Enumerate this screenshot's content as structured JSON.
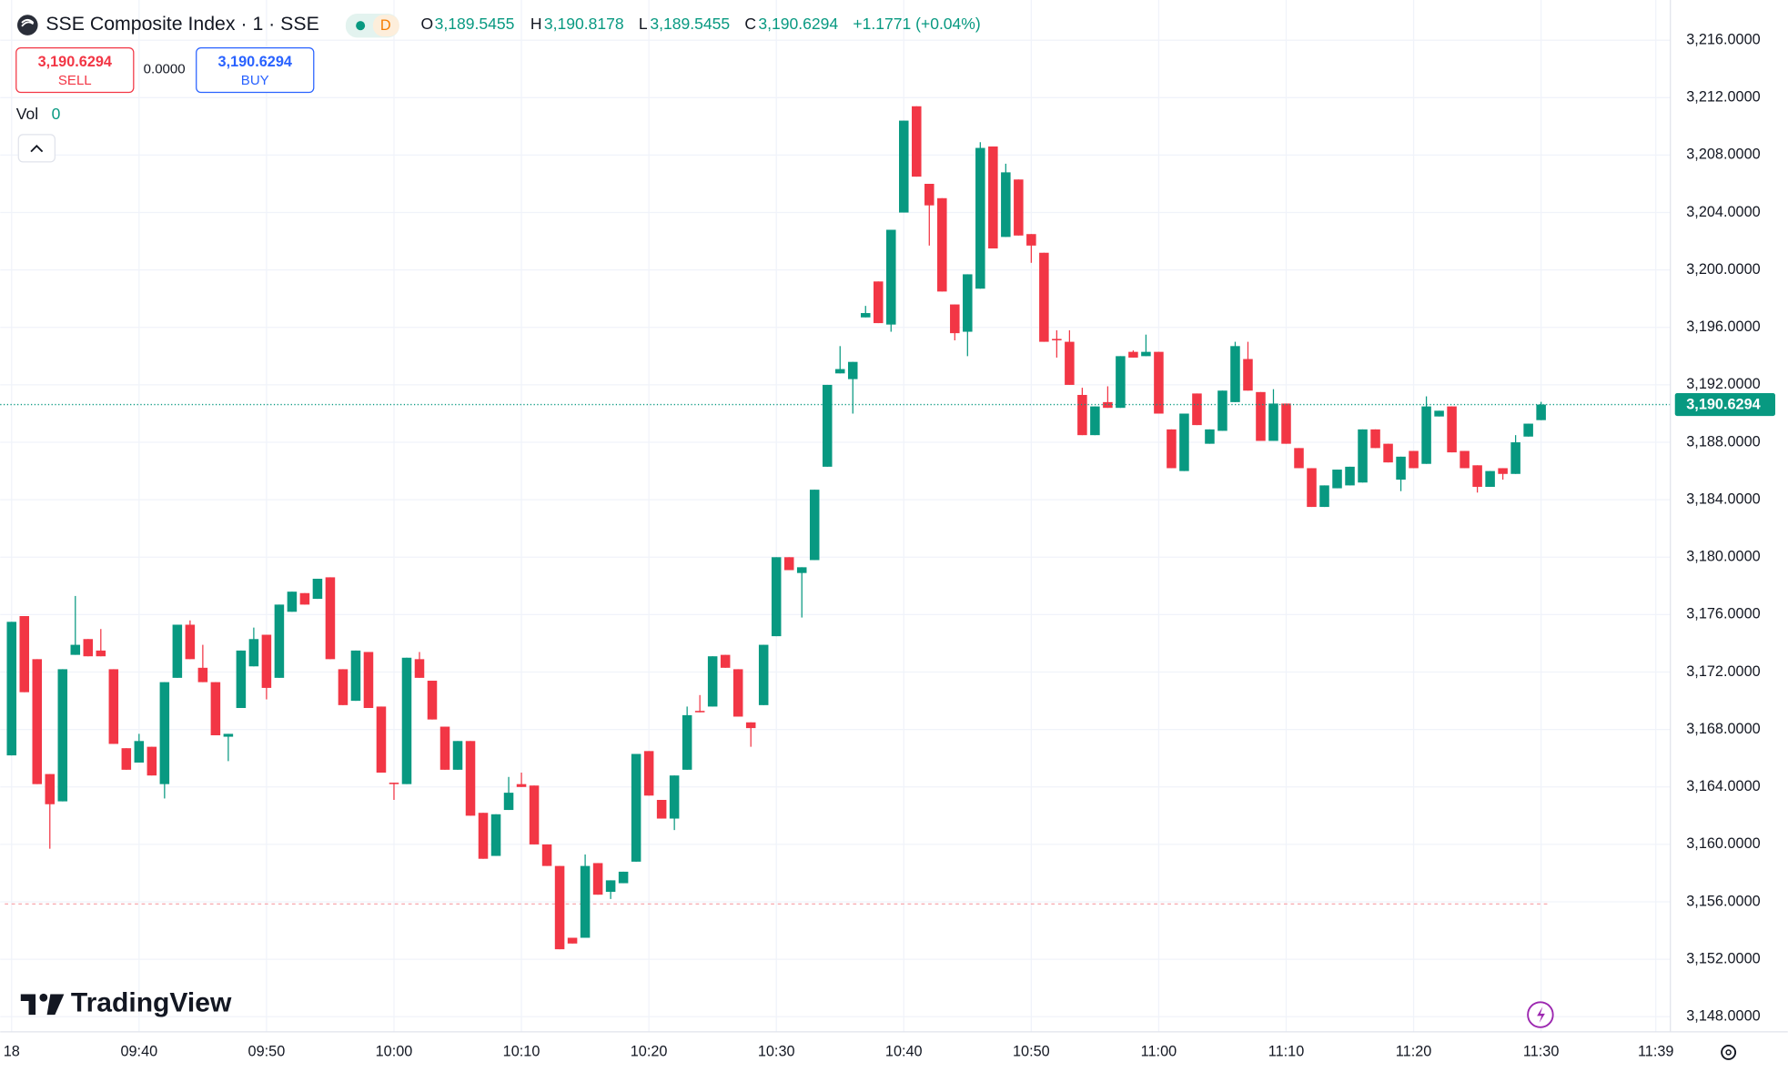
{
  "header": {
    "title": "SSE Composite Index · 1 · SSE",
    "badge": "D",
    "ohlc": [
      {
        "label": "O",
        "value": "3,189.5455"
      },
      {
        "label": "H",
        "value": "3,190.8178"
      },
      {
        "label": "L",
        "value": "3,189.5455"
      },
      {
        "label": "C",
        "value": "3,190.6294"
      }
    ],
    "change": "+1.1771 (+0.04%)"
  },
  "trade": {
    "sell_price": "3,190.6294",
    "sell_label": "SELL",
    "spread": "0.0000",
    "buy_price": "3,190.6294",
    "buy_label": "BUY"
  },
  "branding": "TradingView",
  "chart_data": {
    "type": "candlestick",
    "volume_label": "Vol",
    "volume_value": 0,
    "categories": [
      "18",
      null,
      null,
      null,
      null,
      null,
      null,
      null,
      null,
      null,
      "09:40",
      null,
      null,
      null,
      null,
      null,
      null,
      null,
      null,
      null,
      "09:50",
      null,
      null,
      null,
      null,
      null,
      null,
      null,
      null,
      null,
      "10:00",
      null,
      null,
      null,
      null,
      null,
      null,
      null,
      null,
      null,
      "10:10",
      null,
      null,
      null,
      null,
      null,
      null,
      null,
      null,
      null,
      "10:20",
      null,
      null,
      null,
      null,
      null,
      null,
      null,
      null,
      null,
      "10:30",
      null,
      null,
      null,
      null,
      null,
      null,
      null,
      null,
      null,
      "10:40",
      null,
      null,
      null,
      null,
      null,
      null,
      null,
      null,
      null,
      "10:50",
      null,
      null,
      null,
      null,
      null,
      null,
      null,
      null,
      null,
      "11:00",
      null,
      null,
      null,
      null,
      null,
      null,
      null,
      null,
      null,
      "11:10",
      null,
      null,
      null,
      null,
      null,
      null,
      null,
      null,
      null,
      "11:20",
      null,
      null,
      null,
      null,
      null,
      null,
      null,
      null,
      null,
      "11:30",
      null,
      null,
      null,
      null,
      null,
      null,
      null,
      null,
      "11:39"
    ],
    "series": [
      {
        "up_color": "#089981",
        "down_color": "#f23645",
        "open": [
          3166.2,
          3175.9,
          3172.9,
          3164.9,
          3163.0,
          3173.2,
          3174.3,
          3173.5,
          3172.2,
          3166.7,
          3165.7,
          3166.8,
          3164.2,
          3171.6,
          3175.3,
          3172.3,
          3171.3,
          3167.5,
          3169.5,
          3172.4,
          3174.6,
          3171.6,
          3176.2,
          3177.5,
          3177.1,
          3178.6,
          3172.2,
          3170.0,
          3173.4,
          3169.6,
          3164.3,
          3164.2,
          3172.9,
          3171.4,
          3168.2,
          3165.2,
          3167.2,
          3162.2,
          3159.2,
          3162.4,
          3164.2,
          3164.1,
          3160.0,
          3158.5,
          3153.5,
          3153.5,
          3158.7,
          3156.7,
          3157.3,
          3158.8,
          3166.5,
          3163.1,
          3161.8,
          3165.2,
          3169.3,
          3169.6,
          3173.2,
          3172.2,
          3168.5,
          3169.7,
          3174.5,
          3180.0,
          3178.9,
          3179.8,
          3186.3,
          3192.8,
          3192.4,
          3196.7,
          3199.2,
          3196.2,
          3204.0,
          3211.4,
          3206.0,
          3205.0,
          3197.6,
          3195.7,
          3198.7,
          3208.6,
          3202.3,
          3206.3,
          3202.5,
          3201.2,
          3195.2,
          3195.0,
          3191.3,
          3188.5,
          3190.8,
          3190.4,
          3194.3,
          3194.0,
          3194.3,
          3188.9,
          3186.0,
          3191.4,
          3187.9,
          3188.8,
          3190.8,
          3193.8,
          3191.5,
          3188.1,
          3190.7,
          3187.6,
          3186.2,
          3183.5,
          3184.8,
          3185.0,
          3185.2,
          3188.9,
          3187.9,
          3185.4,
          3187.4,
          3186.5,
          3189.8,
          3190.5,
          3187.4,
          3186.4,
          3184.9,
          3186.2,
          3185.8,
          3188.4,
          3189.5455,
          null,
          null,
          null,
          null,
          null,
          null,
          null,
          null,
          null
        ],
        "high": [
          3175.5,
          3175.9,
          3172.9,
          3164.9,
          3172.2,
          3177.3,
          3174.3,
          3175.0,
          3172.2,
          3166.7,
          3167.7,
          3166.8,
          3171.3,
          3175.3,
          3175.6,
          3173.9,
          3171.3,
          3167.7,
          3173.5,
          3175.1,
          3174.6,
          3176.7,
          3177.6,
          3177.5,
          3178.5,
          3178.6,
          3172.2,
          3173.5,
          3173.4,
          3169.6,
          3164.3,
          3173.0,
          3173.4,
          3171.4,
          3168.2,
          3167.2,
          3167.2,
          3162.2,
          3162.1,
          3164.7,
          3165.0,
          3164.1,
          3160.0,
          3158.5,
          3153.5,
          3159.3,
          3158.7,
          3157.5,
          3158.1,
          3166.3,
          3166.5,
          3163.1,
          3164.8,
          3169.6,
          3170.4,
          3173.1,
          3173.2,
          3172.2,
          3168.5,
          3173.9,
          3180.0,
          3180.0,
          3179.3,
          3184.7,
          3192.0,
          3194.7,
          3193.6,
          3197.5,
          3199.2,
          3202.8,
          3210.4,
          3211.4,
          3206.0,
          3205.0,
          3197.6,
          3199.7,
          3208.9,
          3208.6,
          3207.4,
          3206.3,
          3202.5,
          3201.2,
          3195.8,
          3195.8,
          3191.8,
          3190.5,
          3191.9,
          3194.0,
          3194.4,
          3195.5,
          3194.3,
          3188.9,
          3190.0,
          3191.4,
          3188.9,
          3191.6,
          3195.0,
          3195.0,
          3191.5,
          3191.7,
          3190.7,
          3187.6,
          3186.2,
          3185.0,
          3186.1,
          3186.3,
          3188.9,
          3188.9,
          3187.9,
          3187.0,
          3187.4,
          3191.2,
          3190.2,
          3190.5,
          3187.4,
          3186.4,
          3186.0,
          3186.2,
          3188.5,
          3189.3,
          3190.8178,
          null,
          null,
          null,
          null,
          null,
          null,
          null,
          null,
          null
        ],
        "low": [
          3166.2,
          3170.6,
          3164.2,
          3159.7,
          3163.0,
          3173.2,
          3173.1,
          3173.1,
          3167.0,
          3165.2,
          3165.7,
          3164.8,
          3163.2,
          3171.6,
          3172.9,
          3171.3,
          3167.6,
          3165.8,
          3169.5,
          3172.4,
          3170.1,
          3171.6,
          3176.2,
          3176.7,
          3177.1,
          3172.9,
          3169.7,
          3170.0,
          3169.5,
          3165.0,
          3163.1,
          3164.2,
          3171.6,
          3168.7,
          3165.2,
          3165.2,
          3162.0,
          3159.0,
          3159.2,
          3162.4,
          3164.0,
          3160.0,
          3158.5,
          3152.7,
          3153.1,
          3153.5,
          3156.5,
          3156.2,
          3157.3,
          3158.8,
          3163.4,
          3161.8,
          3161.0,
          3165.2,
          3169.2,
          3169.6,
          3172.3,
          3168.9,
          3166.8,
          3169.7,
          3174.5,
          3179.1,
          3175.8,
          3179.8,
          3186.3,
          3192.8,
          3190.0,
          3196.7,
          3196.3,
          3195.7,
          3204.0,
          3206.5,
          3201.7,
          3198.5,
          3195.1,
          3194.0,
          3198.7,
          3201.5,
          3202.3,
          3202.4,
          3200.5,
          3195.0,
          3193.9,
          3192.0,
          3188.5,
          3188.5,
          3190.4,
          3190.4,
          3193.9,
          3194.0,
          3190.0,
          3186.2,
          3186.0,
          3189.2,
          3187.9,
          3188.8,
          3190.8,
          3191.6,
          3188.1,
          3188.1,
          3187.9,
          3186.2,
          3183.5,
          3183.5,
          3184.8,
          3185.0,
          3185.2,
          3187.6,
          3186.6,
          3184.6,
          3186.2,
          3186.5,
          3189.8,
          3187.3,
          3186.2,
          3184.5,
          3184.9,
          3185.4,
          3185.8,
          3188.4,
          3189.5455,
          null,
          null,
          null,
          null,
          null,
          null,
          null,
          null,
          null
        ],
        "close": [
          3175.5,
          3170.6,
          3164.2,
          3162.8,
          3172.2,
          3173.9,
          3173.1,
          3173.1,
          3167.0,
          3165.2,
          3167.2,
          3164.8,
          3171.3,
          3175.3,
          3172.9,
          3171.3,
          3167.6,
          3167.7,
          3173.5,
          3174.3,
          3170.9,
          3176.7,
          3177.6,
          3176.7,
          3178.5,
          3172.9,
          3169.7,
          3173.5,
          3169.5,
          3165.0,
          3164.2,
          3173.0,
          3171.6,
          3168.7,
          3165.2,
          3167.2,
          3162.0,
          3159.0,
          3162.1,
          3163.6,
          3164.0,
          3160.0,
          3158.5,
          3152.7,
          3153.1,
          3158.5,
          3156.5,
          3157.5,
          3158.1,
          3166.3,
          3163.4,
          3161.8,
          3164.8,
          3169.0,
          3169.2,
          3173.1,
          3172.3,
          3168.9,
          3168.1,
          3173.9,
          3180.0,
          3179.1,
          3179.3,
          3184.7,
          3192.0,
          3193.1,
          3193.6,
          3197.0,
          3196.3,
          3202.8,
          3210.4,
          3206.5,
          3204.5,
          3198.5,
          3195.6,
          3199.7,
          3208.5,
          3201.5,
          3206.8,
          3202.4,
          3201.7,
          3195.0,
          3195.1,
          3192.0,
          3188.5,
          3190.5,
          3190.4,
          3194.0,
          3193.9,
          3194.3,
          3190.0,
          3186.2,
          3190.0,
          3189.2,
          3188.9,
          3191.6,
          3194.7,
          3191.6,
          3188.1,
          3190.7,
          3187.9,
          3186.2,
          3183.5,
          3185.0,
          3186.1,
          3186.3,
          3188.9,
          3187.6,
          3186.6,
          3187.0,
          3186.2,
          3190.5,
          3190.2,
          3187.3,
          3186.2,
          3184.9,
          3186.0,
          3185.8,
          3188.0,
          3189.3,
          3190.6294,
          null,
          null,
          null,
          null,
          null,
          null,
          null,
          null,
          null
        ]
      }
    ],
    "ylim": [
      3146.95,
      3218.8
    ],
    "yticks": [
      {
        "value": 3148,
        "label": "3,148.0000"
      },
      {
        "value": 3152,
        "label": "3,152.0000"
      },
      {
        "value": 3156,
        "label": "3,156.0000"
      },
      {
        "value": 3160,
        "label": "3,160.0000"
      },
      {
        "value": 3164,
        "label": "3,164.0000"
      },
      {
        "value": 3168,
        "label": "3,168.0000"
      },
      {
        "value": 3172,
        "label": "3,172.0000"
      },
      {
        "value": 3176,
        "label": "3,176.0000"
      },
      {
        "value": 3180,
        "label": "3,180.0000"
      },
      {
        "value": 3184,
        "label": "3,184.0000"
      },
      {
        "value": 3188,
        "label": "3,188.0000"
      },
      {
        "value": 3192,
        "label": "3,192.0000"
      },
      {
        "value": 3196,
        "label": "3,196.0000"
      },
      {
        "value": 3200,
        "label": "3,200.0000"
      },
      {
        "value": 3204,
        "label": "3,204.0000"
      },
      {
        "value": 3208,
        "label": "3,208.0000"
      },
      {
        "value": 3212,
        "label": "3,212.0000"
      },
      {
        "value": 3216,
        "label": "3,216.0000"
      }
    ],
    "grid": true,
    "grid_color": "#f0f3fa",
    "last_price": {
      "value": 3190.6294,
      "label": "3,190.6294"
    },
    "reference_line": 3155.85
  }
}
